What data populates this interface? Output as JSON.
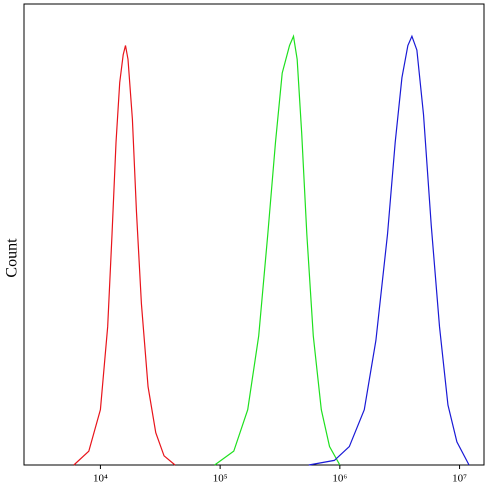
{
  "chart_data": {
    "type": "line",
    "y_label": "Count",
    "xscale": "log",
    "xlim": [
      2300,
      16000000
    ],
    "ylim": [
      0,
      100
    ],
    "xticks": [
      {
        "value": 10000,
        "label": "10⁴"
      },
      {
        "value": 100000,
        "label": "10⁵"
      },
      {
        "value": 1000000,
        "label": "10⁶"
      },
      {
        "value": 10000000,
        "label": "10⁷"
      }
    ],
    "series": [
      {
        "color": "#e8141b",
        "x": [
          6000,
          8000,
          10000,
          11500,
          12500,
          13500,
          14500,
          15500,
          16200,
          17000,
          18500,
          20000,
          22000,
          25000,
          29000,
          34000,
          42000
        ],
        "values": [
          0,
          3,
          12,
          30,
          50,
          70,
          83,
          89,
          91,
          88,
          75,
          55,
          35,
          17,
          7,
          2,
          0
        ]
      },
      {
        "color": "#1fe01f",
        "x": [
          90000,
          130000,
          170000,
          210000,
          250000,
          290000,
          330000,
          380000,
          410000,
          440000,
          480000,
          530000,
          600000,
          700000,
          820000,
          1000000
        ],
        "values": [
          0,
          3,
          12,
          28,
          50,
          70,
          85,
          91,
          93,
          88,
          72,
          50,
          28,
          12,
          4,
          0
        ]
      },
      {
        "color": "#1a1ad6",
        "x": [
          550000,
          900000,
          1200000,
          1600000,
          2000000,
          2500000,
          2900000,
          3300000,
          3700000,
          4000000,
          4400000,
          5000000,
          5800000,
          6800000,
          8000000,
          9500000,
          12000000
        ],
        "values": [
          0,
          1,
          4,
          12,
          27,
          50,
          70,
          84,
          91,
          93,
          90,
          76,
          52,
          30,
          13,
          5,
          0
        ]
      }
    ]
  }
}
